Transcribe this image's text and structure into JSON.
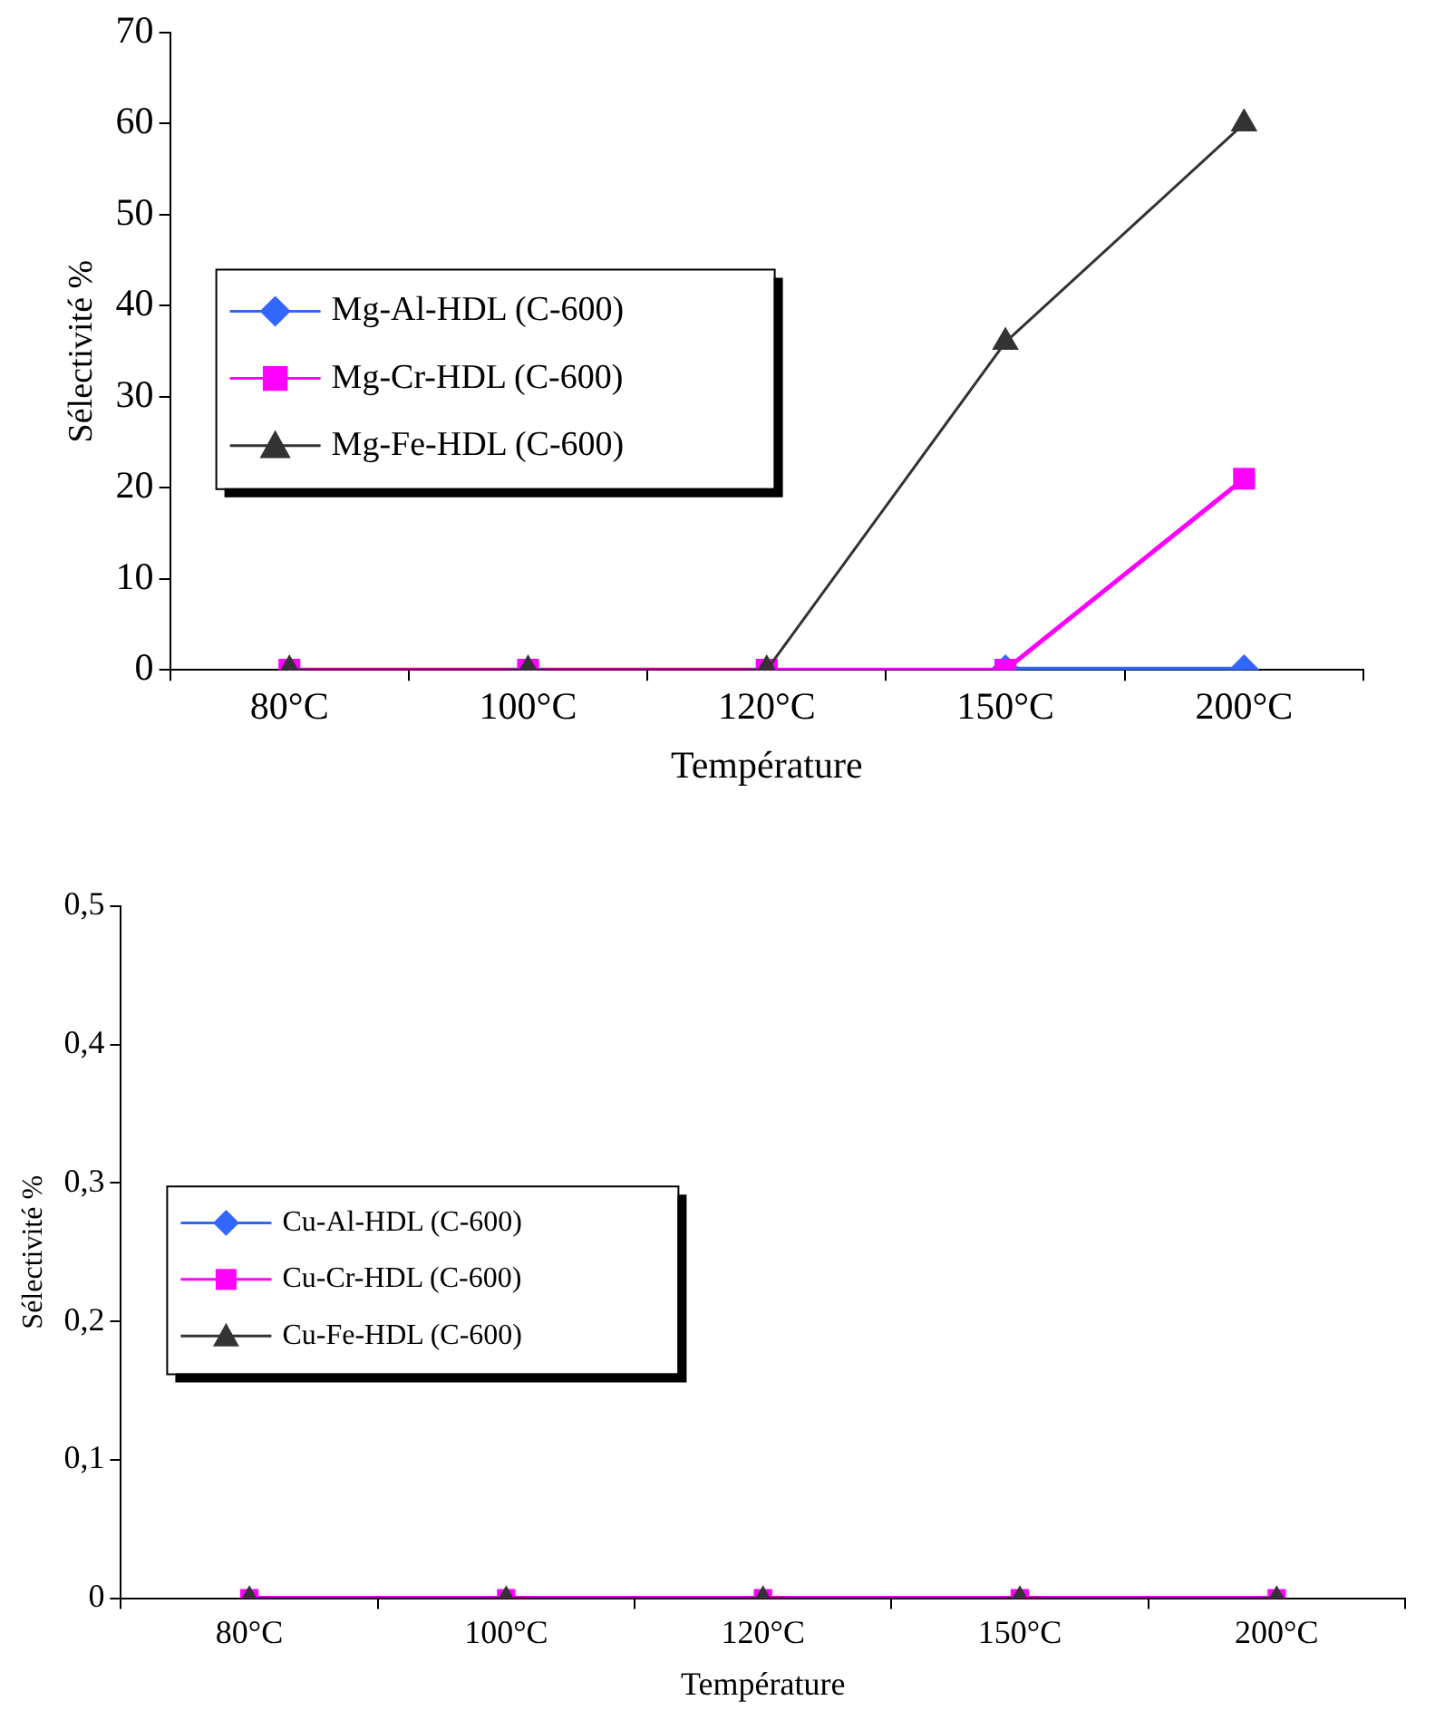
{
  "chart_data": [
    {
      "type": "line",
      "xlabel": "Température",
      "ylabel": "Sélectivité %",
      "categories": [
        "80°C",
        "100°C",
        "120°C",
        "150°C",
        "200°C"
      ],
      "ylim": [
        0,
        70
      ],
      "yticks": [
        0,
        10,
        20,
        30,
        40,
        50,
        60,
        70
      ],
      "grid": false,
      "legend": "left",
      "series": [
        {
          "name": "Mg-Al-HDL (C-600)",
          "color": "#3366ff",
          "marker": "diamond",
          "values": [
            null,
            null,
            null,
            0,
            0
          ]
        },
        {
          "name": "Mg-Cr-HDL (C-600)",
          "color": "#ff00ff",
          "marker": "square",
          "values": [
            0,
            0,
            0,
            0,
            21
          ]
        },
        {
          "name": "Mg-Fe-HDL (C-600)",
          "color": "#333333",
          "marker": "triangle",
          "values": [
            0,
            0,
            0,
            36,
            60
          ]
        }
      ]
    },
    {
      "type": "line",
      "xlabel": "Température",
      "ylabel": "Sélectivité %",
      "categories": [
        "80°C",
        "100°C",
        "120°C",
        "150°C",
        "200°C"
      ],
      "ylim": [
        0,
        0.5
      ],
      "yticks": [
        0,
        {
          "value": 0.1,
          "label": "0,1"
        },
        {
          "value": 0.2,
          "label": "0,2"
        },
        {
          "value": 0.3,
          "label": "0,3"
        },
        {
          "value": 0.4,
          "label": "0,4"
        },
        {
          "value": 0.5,
          "label": "0,5"
        }
      ],
      "grid": false,
      "legend": "left",
      "series": [
        {
          "name": "Cu-Al-HDL (C-600)",
          "color": "#3366ff",
          "marker": "diamond",
          "values": [
            null,
            null,
            null,
            null,
            null
          ]
        },
        {
          "name": "Cu-Cr-HDL (C-600)",
          "color": "#ff00ff",
          "marker": "square",
          "values": [
            0,
            0,
            0,
            0,
            0
          ]
        },
        {
          "name": "Cu-Fe-HDL (C-600)",
          "color": "#333333",
          "marker": "triangle",
          "values": [
            0,
            0,
            0,
            0,
            0
          ]
        }
      ]
    }
  ]
}
